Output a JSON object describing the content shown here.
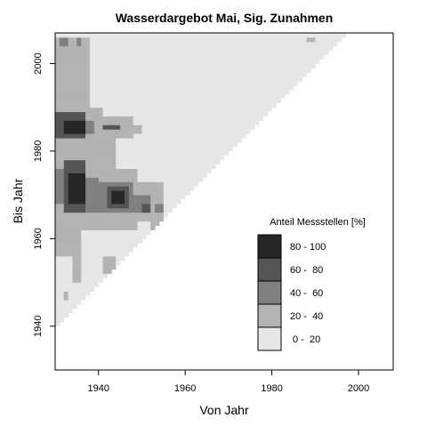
{
  "chart_data": {
    "type": "heatmap",
    "title": "Wasserdargebot Mai, Sig. Zunahmen",
    "xlabel": "Von Jahr",
    "ylabel": "Bis Jahr",
    "xlim": [
      1930,
      2008
    ],
    "ylim": [
      1930,
      2007
    ],
    "x_ticks": [
      "1940",
      "1960",
      "1980",
      "2000"
    ],
    "y_ticks": [
      "1940",
      "1960",
      "1980",
      "2000"
    ],
    "x_tick_values": [
      1940,
      1960,
      1980,
      2000
    ],
    "y_tick_values": [
      1940,
      1960,
      1980,
      2000
    ],
    "triangle": {
      "start_year": 1930,
      "end_year": 2006,
      "min_span": 10
    },
    "background_class": 0,
    "colors": [
      "#e6e6e6",
      "#b3b3b3",
      "#808080",
      "#555555",
      "#262626"
    ],
    "regions": [
      {
        "x": [
          1930,
          1936
        ],
        "y": [
          1962,
          2006
        ],
        "class": 1
      },
      {
        "x": [
          1936,
          1938
        ],
        "y": [
          1996,
          2006
        ],
        "class": 1
      },
      {
        "x": [
          1931,
          1933
        ],
        "y": [
          2004,
          2006
        ],
        "class": 2
      },
      {
        "x": [
          1935,
          1936
        ],
        "y": [
          2004,
          2006
        ],
        "class": 2
      },
      {
        "x": [
          1936,
          1941
        ],
        "y": [
          1983,
          1990
        ],
        "class": 1
      },
      {
        "x": [
          1941,
          1948
        ],
        "y": [
          1983,
          1988
        ],
        "class": 1
      },
      {
        "x": [
          1948,
          1950
        ],
        "y": [
          1984,
          1986
        ],
        "class": 1
      },
      {
        "x": [
          1930,
          1937
        ],
        "y": [
          1983,
          1989
        ],
        "class": 3
      },
      {
        "x": [
          1932,
          1937
        ],
        "y": [
          1984,
          1987
        ],
        "class": 4
      },
      {
        "x": [
          1937,
          1939
        ],
        "y": [
          1984,
          1987
        ],
        "class": 2
      },
      {
        "x": [
          1941,
          1944
        ],
        "y": [
          1985,
          1986
        ],
        "class": 3
      },
      {
        "x": [
          1944,
          1945
        ],
        "y": [
          1985,
          1986
        ],
        "class": 3
      },
      {
        "x": [
          1936,
          1944
        ],
        "y": [
          1976,
          1983
        ],
        "class": 1
      },
      {
        "x": [
          1936,
          1949
        ],
        "y": [
          1962,
          1976
        ],
        "class": 1
      },
      {
        "x": [
          1949,
          1955
        ],
        "y": [
          1964,
          1973
        ],
        "class": 1
      },
      {
        "x": [
          1952,
          1955
        ],
        "y": [
          1962,
          1965
        ],
        "class": 1
      },
      {
        "x": [
          1930,
          1932
        ],
        "y": [
          1968,
          1976
        ],
        "class": 2
      },
      {
        "x": [
          1932,
          1937
        ],
        "y": [
          1966,
          1978
        ],
        "class": 3
      },
      {
        "x": [
          1933,
          1937
        ],
        "y": [
          1968,
          1975
        ],
        "class": 4
      },
      {
        "x": [
          1937,
          1940
        ],
        "y": [
          1966,
          1974
        ],
        "class": 2
      },
      {
        "x": [
          1940,
          1948
        ],
        "y": [
          1966,
          1973
        ],
        "class": 2
      },
      {
        "x": [
          1942,
          1947
        ],
        "y": [
          1967,
          1972
        ],
        "class": 3
      },
      {
        "x": [
          1943,
          1946
        ],
        "y": [
          1968,
          1971
        ],
        "class": 4
      },
      {
        "x": [
          1948,
          1952
        ],
        "y": [
          1966,
          1970
        ],
        "class": 2
      },
      {
        "x": [
          1950,
          1952
        ],
        "y": [
          1966,
          1968
        ],
        "class": 3
      },
      {
        "x": [
          1953,
          1955
        ],
        "y": [
          1966,
          1968
        ],
        "class": 2
      },
      {
        "x": [
          1936,
          1948
        ],
        "y": [
          1962,
          1966
        ],
        "class": 1
      },
      {
        "x": [
          1936,
          1938
        ],
        "y": [
          1990,
          1996
        ],
        "class": 1
      },
      {
        "x": [
          1930,
          1936
        ],
        "y": [
          1956,
          1962
        ],
        "class": 1
      },
      {
        "x": [
          1934,
          1936
        ],
        "y": [
          1950,
          1956
        ],
        "class": 1
      },
      {
        "x": [
          1932,
          1933
        ],
        "y": [
          1946,
          1948
        ],
        "class": 1
      },
      {
        "x": [
          1941,
          1944
        ],
        "y": [
          1952,
          1956
        ],
        "class": 1
      },
      {
        "x": [
          1958,
          1960
        ],
        "y": [
          1966,
          1968
        ],
        "class": 1
      },
      {
        "x": [
          1975,
          1978
        ],
        "y": [
          1981,
          1983
        ],
        "class": 1
      },
      {
        "x": [
          1988,
          1990
        ],
        "y": [
          2005,
          2006
        ],
        "class": 1
      }
    ],
    "legend": {
      "title": "Anteil Messstellen [%]",
      "position": "bottom-right",
      "entries": [
        {
          "label": "80 - 100",
          "class": 4
        },
        {
          "label": "60 -  80",
          "class": 3
        },
        {
          "label": "40 -  60",
          "class": 2
        },
        {
          "label": "20 -  40",
          "class": 1
        },
        {
          "label": " 0 -  20",
          "class": 0
        }
      ]
    }
  }
}
